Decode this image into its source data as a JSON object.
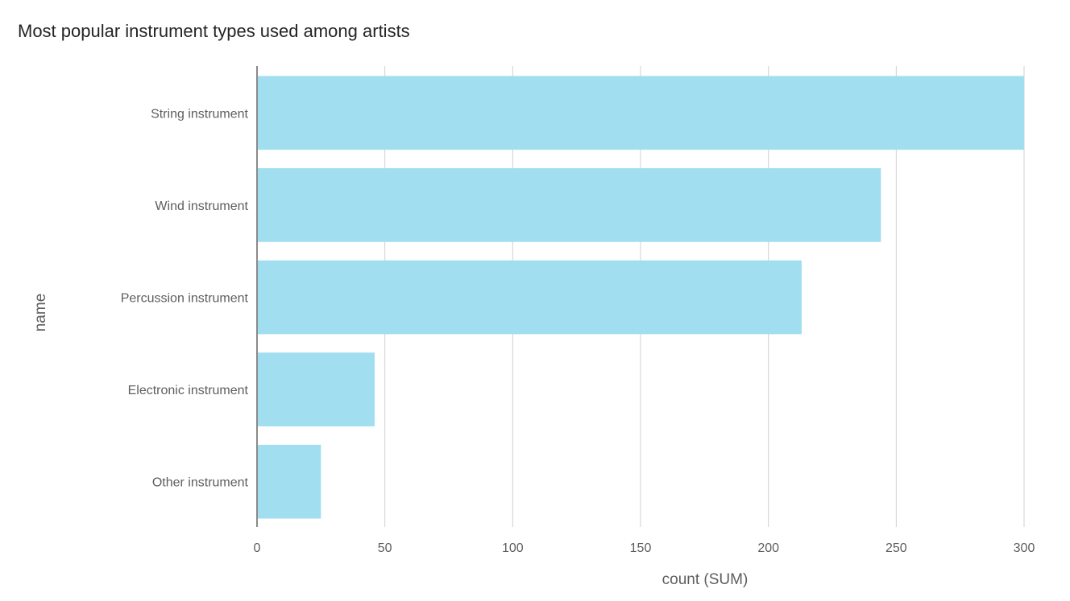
{
  "chart_data": {
    "type": "bar",
    "orientation": "horizontal",
    "title": "Most popular instrument types used among artists",
    "xlabel": "count (SUM)",
    "ylabel": "name",
    "categories": [
      "String instrument",
      "Wind instrument",
      "Percussion instrument",
      "Electronic instrument",
      "Other instrument"
    ],
    "values": [
      300,
      244,
      213,
      46,
      25
    ],
    "xlim": [
      0,
      300
    ],
    "xticks": [
      0,
      50,
      100,
      150,
      200,
      250,
      300
    ],
    "grid": true,
    "legend": "none",
    "colors": {
      "bar": "#a0def0",
      "grid": "#d0d0d0",
      "axis": "#8a8a8a"
    }
  }
}
